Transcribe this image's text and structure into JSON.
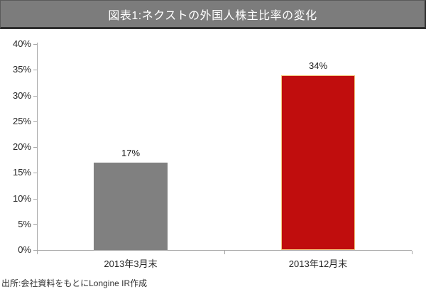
{
  "title_bar": {
    "text": "図表1:ネクストの外国人株主比率の変化",
    "bg_color": "#7c7c7c",
    "text_color": "#ffffff"
  },
  "chart_data": {
    "type": "bar",
    "title": "図表1:ネクストの外国人株主比率の変化",
    "categories": [
      "2013年3月末",
      "2013年12月末"
    ],
    "values": [
      17,
      34
    ],
    "data_labels": [
      "17%",
      "34%"
    ],
    "bar_colors": [
      "#808080",
      "#c00d0d"
    ],
    "bar_border_colors": [
      "none",
      "#f2c57c"
    ],
    "xlabel": "",
    "ylabel": "",
    "ylim": [
      0,
      40
    ],
    "y_tick_values": [
      0,
      5,
      10,
      15,
      20,
      25,
      30,
      35,
      40
    ],
    "y_tick_labels": [
      "0%",
      "5%",
      "10%",
      "15%",
      "20%",
      "25%",
      "30%",
      "35%",
      "40%"
    ],
    "grid": false,
    "legend_position": "none",
    "axis_color": "#a6a6a6"
  },
  "source_note": "出所:会社資料をもとにLongine IR作成"
}
